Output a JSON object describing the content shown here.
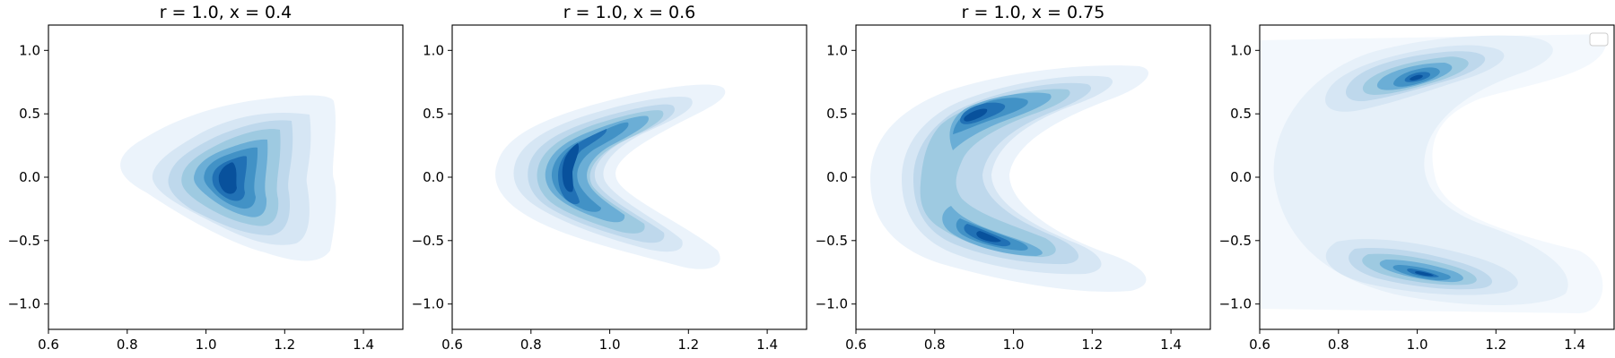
{
  "figure": {
    "colormap": "Blues"
  },
  "chart_data": [
    {
      "type": "kde-contour",
      "title": "r = 1.0, x = 0.4",
      "xlim": [
        0.6,
        1.5
      ],
      "ylim": [
        -1.2,
        1.2
      ],
      "xticks": [
        0.6,
        0.8,
        1.0,
        1.2,
        1.4
      ],
      "yticks": [
        1.0,
        0.5,
        0.0,
        -0.5,
        -1.0
      ],
      "xtick_labels": [
        "0.6",
        "0.8",
        "1.0",
        "1.2",
        "1.4"
      ],
      "ytick_labels": [
        "1.0",
        "0.5",
        "0.0",
        "−0.5",
        "−1.0"
      ],
      "legend": false,
      "distribution": {
        "shape": "crescent",
        "x_center": 1.03,
        "y_extent": [
          -0.62,
          0.58
        ],
        "x_extent": [
          0.78,
          1.33
        ],
        "peak": [
          1.02,
          -0.02
        ]
      }
    },
    {
      "type": "kde-contour",
      "title": "r = 1.0, x = 0.6",
      "xlim": [
        0.6,
        1.5
      ],
      "ylim": [
        -1.2,
        1.2
      ],
      "xticks": [
        0.6,
        0.8,
        1.0,
        1.2,
        1.4
      ],
      "yticks": [
        1.0,
        0.5,
        0.0,
        -0.5,
        -1.0
      ],
      "xtick_labels": [
        "0.6",
        "0.8",
        "1.0",
        "1.2",
        "1.4"
      ],
      "ytick_labels": [
        "1.0",
        "0.5",
        "0.0",
        "−0.5",
        "−1.0"
      ],
      "legend": false,
      "distribution": {
        "shape": "crescent",
        "x_center": 0.95,
        "y_extent": [
          -0.75,
          0.68
        ],
        "x_extent": [
          0.71,
          1.31
        ],
        "peak": [
          0.88,
          0.0
        ]
      }
    },
    {
      "type": "kde-contour",
      "title": "r = 1.0, x = 0.75",
      "xlim": [
        0.6,
        1.5
      ],
      "ylim": [
        -1.2,
        1.2
      ],
      "xticks": [
        0.6,
        0.8,
        1.0,
        1.2,
        1.4
      ],
      "yticks": [
        1.0,
        0.5,
        0.0,
        -0.5,
        -1.0
      ],
      "xtick_labels": [
        "0.6",
        "0.8",
        "1.0",
        "1.2",
        "1.4"
      ],
      "ytick_labels": [
        "1.0",
        "0.5",
        "0.0",
        "−0.5",
        "−1.0"
      ],
      "legend": false,
      "distribution": {
        "shape": "two-lobe",
        "x_extent": [
          0.67,
          1.34
        ],
        "y_extent": [
          -0.92,
          0.88
        ],
        "peaks": [
          [
            0.92,
            0.5
          ],
          [
            1.0,
            -0.6
          ]
        ]
      }
    },
    {
      "type": "kde-contour",
      "title": "",
      "xlim": [
        0.6,
        1.5
      ],
      "ylim": [
        -1.2,
        1.2
      ],
      "xticks": [
        0.6,
        0.8,
        1.0,
        1.2,
        1.4
      ],
      "yticks": [
        1.0,
        0.5,
        0.0,
        -0.5,
        -1.0
      ],
      "xtick_labels": [
        "0.6",
        "0.8",
        "1.0",
        "1.2",
        "1.4"
      ],
      "ytick_labels": [
        "1.0",
        "0.5",
        "0.0",
        "−0.5",
        "−1.0"
      ],
      "legend": true,
      "legend_loc": "top-right",
      "distribution": {
        "shape": "two-lobe",
        "x_extent": [
          0.6,
          1.5
        ],
        "y_extent": [
          -1.1,
          1.12
        ],
        "peaks": [
          [
            1.02,
            0.75
          ],
          [
            1.03,
            -0.77
          ]
        ]
      }
    }
  ]
}
